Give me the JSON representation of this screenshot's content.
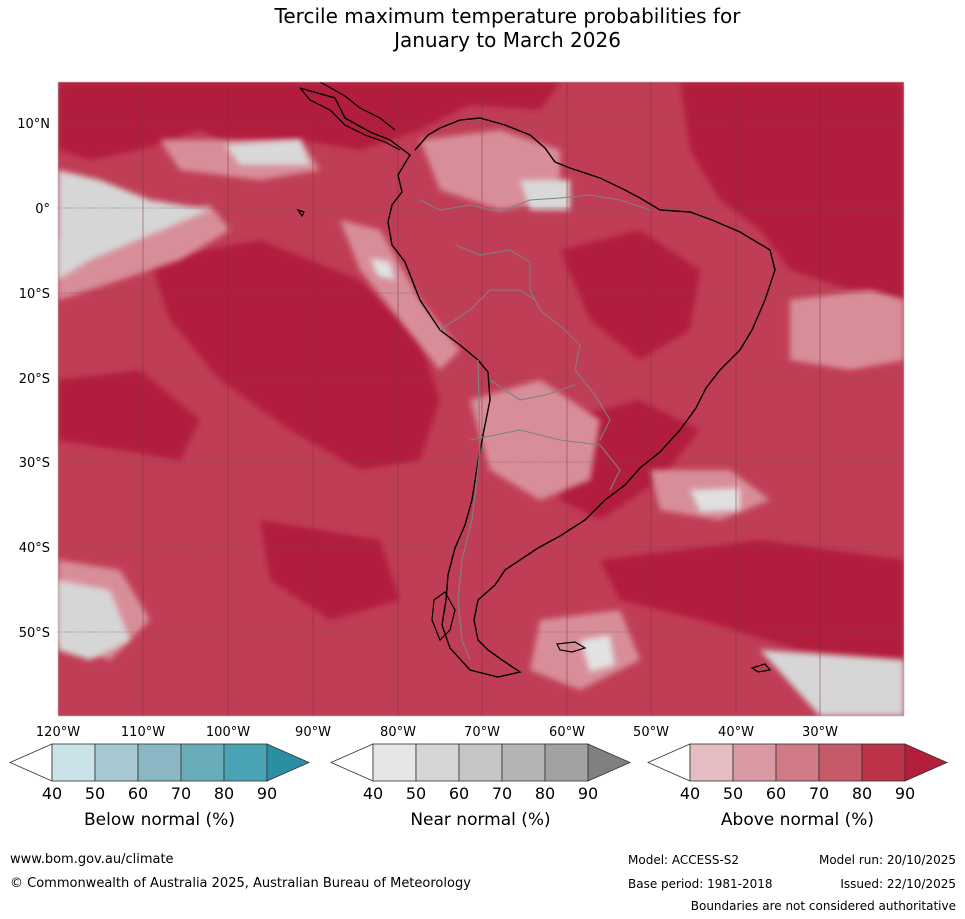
{
  "title": {
    "line1": "Tercile maximum temperature probabilities for",
    "line2": "January to March 2026"
  },
  "map": {
    "lat_labels": [
      "10°N",
      "0°",
      "10°S",
      "20°S",
      "30°S",
      "40°S",
      "50°S"
    ],
    "lon_labels": [
      "120°W",
      "110°W",
      "100°W",
      "90°W",
      "80°W",
      "70°W",
      "60°W",
      "50°W",
      "40°W",
      "30°W"
    ],
    "region": "South America"
  },
  "legends": [
    {
      "label": "Below normal (%)",
      "ticks": [
        "40",
        "50",
        "60",
        "70",
        "80",
        "90"
      ],
      "colors": [
        "#ffffff",
        "#cae3e9",
        "#a6c8d0",
        "#89b7c3",
        "#6aadba",
        "#4aa3b5",
        "#2b8fa4"
      ]
    },
    {
      "label": "Near normal (%)",
      "ticks": [
        "40",
        "50",
        "60",
        "70",
        "80",
        "90"
      ],
      "colors": [
        "#ffffff",
        "#e6e6e6",
        "#d6d6d6",
        "#c6c6c6",
        "#b4b4b4",
        "#a2a2a2",
        "#808080"
      ]
    },
    {
      "label": "Above normal (%)",
      "ticks": [
        "40",
        "50",
        "60",
        "70",
        "80",
        "90"
      ],
      "colors": [
        "#ffffff",
        "#e4bcc2",
        "#da9aa3",
        "#cf7a85",
        "#c65a68",
        "#bc3249",
        "#b21e3c"
      ]
    }
  ],
  "footer": {
    "website": "www.bom.gov.au/climate",
    "copyright": "© Commonwealth of Australia 2025, Australian Bureau of Meteorology",
    "model": "Model: ACCESS-S2",
    "base_period": "Base period: 1981-2018",
    "model_run": "Model run: 20/10/2025",
    "issued": "Issued: 22/10/2025",
    "disclaimer": "Boundaries are not considered authoritative"
  },
  "colors": {
    "ocean_base": "#c03e55",
    "deep": "#b21e3c",
    "mid": "#c65a68",
    "light": "#d88e99",
    "pale": "#e4bcc2",
    "near_light": "#d9d9d9",
    "near_mid": "#c6c6c6"
  }
}
